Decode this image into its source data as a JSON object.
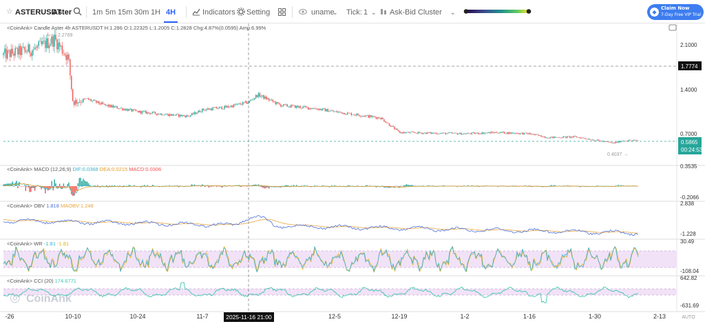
{
  "toolbar": {
    "star_icon": "star-icon",
    "symbol": "ASTERUSDT",
    "name": "Aster",
    "search_icon": "search-icon",
    "intervals": [
      "1m",
      "5m",
      "15m",
      "30m",
      "1H",
      "4H"
    ],
    "active_interval": "4H",
    "indicators_label": "Indicators",
    "setting_label": "Setting",
    "layout_icon": "grid-icon",
    "eye_icon": "eye-icon",
    "uname_label": "uname",
    "tick_label": "Tick:",
    "tick_value": "1",
    "cluster_label": "Ask-Bid Cluster",
    "gradient_colors": [
      "#2b0a4f",
      "#3b4f8f",
      "#21908d",
      "#5dc963",
      "#fde725"
    ],
    "promo_title": "Claim Now",
    "promo_sub": "7-Day Free VIP Trial",
    "screenshot_icon": "camera-icon"
  },
  "chart_data": {
    "type": "candlestick",
    "x_ticks": [
      "-26",
      "10-10",
      "10-24",
      "11-7",
      "2025-11-16 21:00",
      "12-5",
      "12-19",
      "1-2",
      "1-16",
      "1-30",
      "2-13"
    ],
    "crosshair_label": "2025-11-16 21:00",
    "watermark": "CoinAnk",
    "main": {
      "header": "<CoinAnk> Candle   Aster 4h ASTERUSDT H:1.286  O:1.22325  L:1.2005  C:1.2828  Chg:4.87%(0.0595)  Amp:6.99%",
      "y_ticks": [
        "2.1000",
        "1.4000",
        "0.7000"
      ],
      "high_label": "2.2769",
      "low_label": "0.4037",
      "crosshair_price": "1.7774",
      "last_price": "0.5865",
      "countdown": "00:24:53",
      "close_path": [
        [
          "-26",
          1.95
        ],
        [
          "10-2",
          2.05
        ],
        [
          "10-6",
          2.2
        ],
        [
          "10-9",
          1.9
        ],
        [
          "10-10",
          1.2
        ],
        [
          "10-13",
          1.25
        ],
        [
          "10-17",
          1.15
        ],
        [
          "10-24",
          1.05
        ],
        [
          "10-31",
          1.0
        ],
        [
          "11-4",
          0.98
        ],
        [
          "11-7",
          1.08
        ],
        [
          "11-12",
          1.12
        ],
        [
          "11-16",
          1.2
        ],
        [
          "11-19",
          1.32
        ],
        [
          "11-24",
          1.15
        ],
        [
          "12-1",
          1.1
        ],
        [
          "12-5",
          1.05
        ],
        [
          "12-10",
          1.0
        ],
        [
          "12-15",
          0.95
        ],
        [
          "12-19",
          0.72
        ],
        [
          "12-26",
          0.71
        ],
        [
          "1-2",
          0.7
        ],
        [
          "1-9",
          0.72
        ],
        [
          "1-16",
          0.7
        ],
        [
          "1-20",
          0.64
        ],
        [
          "1-26",
          0.65
        ],
        [
          "1-30",
          0.6
        ],
        [
          "2-3",
          0.55
        ],
        [
          "2-5",
          0.59
        ]
      ]
    },
    "macd": {
      "header_prefix": "<CoinAnk> MACD  (12,26,9)",
      "dif": "DIF:0.0368",
      "dea": "DEA:0.0215",
      "macd": "MACD:0.0306",
      "y_ticks": [
        "0.3535",
        "-0.2066"
      ]
    },
    "obv": {
      "header_prefix": "<CoinAnk> OBV",
      "obv": "1.818",
      "maobv": "MAOBV:1.248",
      "y_ticks": [
        "2.838",
        "-1.228"
      ]
    },
    "wr": {
      "header_prefix": "<CoinAnk> WR",
      "v1": "-1.81",
      "v2": "-1.81",
      "y_ticks": [
        "30.49",
        "-108.04"
      ]
    },
    "cci": {
      "header_prefix": "<CoinAnk> CCI  (20)",
      "value": "174.6771",
      "y_ticks": [
        "642.82",
        "-631.69"
      ]
    },
    "colors": {
      "up": "#26a69a",
      "down": "#ef5350",
      "dif": "#3ab0c8",
      "dea": "#e39a24",
      "obv": "#4b6fd8",
      "maobv": "#e8a33a",
      "wr1": "#3ab0c8",
      "wr2": "#e0b020",
      "cci": "#3fc4b0",
      "band": "#f1e2f7"
    }
  }
}
